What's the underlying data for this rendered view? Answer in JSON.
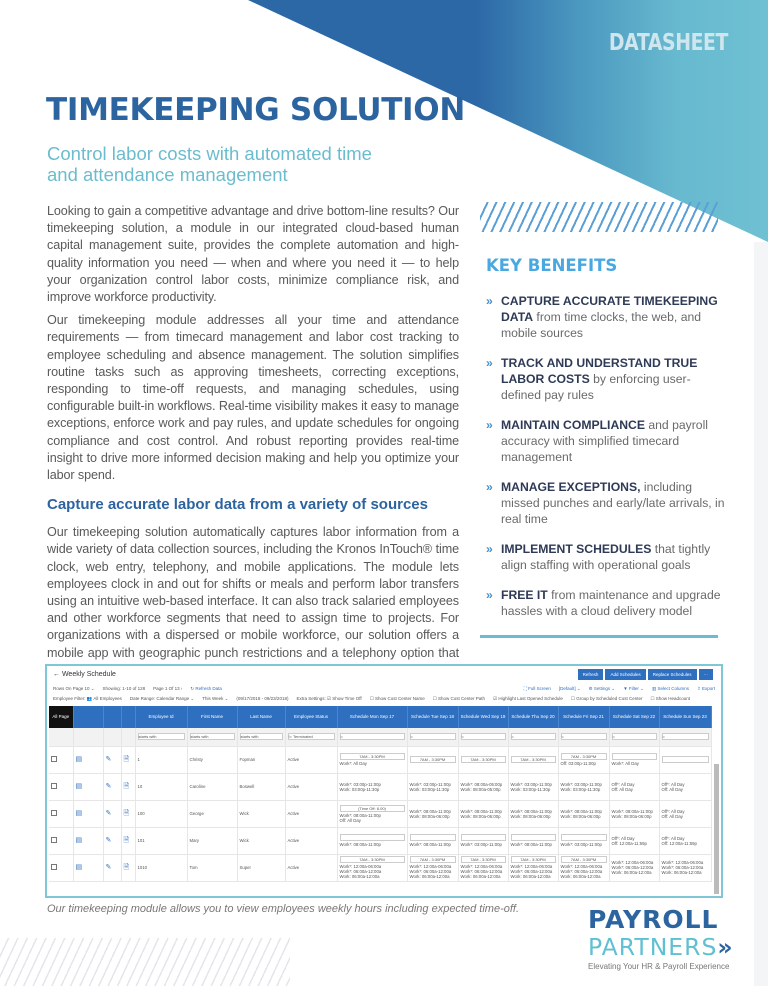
{
  "header": {
    "label": "DATASHEET",
    "title": "TIMEKEEPING SOLUTION",
    "subtitle": "Control labor costs with automated time and attendance  management"
  },
  "colors": {
    "primary": "#2c64a0",
    "accent": "#6bbccf",
    "benefits_heading": "#4aa8e0"
  },
  "intro": [
    "Looking to gain a competitive advantage and drive bottom-line results? Our timekeeping solution, a module in our integrated cloud-based human capital management suite, provides the complete automation and high-quality information you need — when and where you need it — to help your organization control labor costs, minimize compliance risk, and improve workforce productivity.",
    "Our timekeeping module addresses all your time and attendance requirements — from timecard management and labor cost tracking to employee scheduling and absence management. The solution simplifies routine tasks such as approving timesheets, correcting exceptions, responding to time-off requests, and managing schedules, using configurable built-in workflows. Real-time visibility makes it easy to manage exceptions, enforce work and pay rules, and update schedules for ongoing compliance and cost control. And robust reporting provides real-time insight to drive more informed decision making and help you optimize your labor spend."
  ],
  "section": {
    "heading": "Capture accurate labor data from a variety of sources",
    "body": "Our timekeeping solution automatically captures labor information from a wide variety of data collection sources, including the Kronos InTouch® time clock, web entry, telephony, and mobile applications. The module lets employees clock in and out for shifts or meals and perform labor transfers using an intuitive web-based interface. It can also track salaried employees and other workforce segments that need to assign time to projects. For organizations with a dispersed or mobile workforce, our solution offers a mobile app with geographic punch restrictions and a telephony option that captures employee time data via a landline or mobile phone."
  },
  "benefits": {
    "heading": "KEY BENEFITS",
    "bullet": "»",
    "items": [
      {
        "bold": "CAPTURE ACCURATE TIMEKEEPING DATA",
        "text": " from time clocks, the web, and mobile sources"
      },
      {
        "bold": "TRACK AND UNDERSTAND TRUE LABOR COSTS",
        "text": " by enforcing user-defined pay rules"
      },
      {
        "bold": "MAINTAIN COMPLIANCE",
        "text": " and payroll accuracy with simplified timecard management"
      },
      {
        "bold": "MANAGE EXCEPTIONS,",
        "text": " including missed punches and early/late arrivals, in real time"
      },
      {
        "bold": "IMPLEMENT SCHEDULES",
        "text": " that tightly align staffing with operational goals"
      },
      {
        "bold": "FREE IT",
        "text": " from maintenance and upgrade hassles with a cloud delivery model"
      }
    ]
  },
  "screenshot": {
    "title": "← Weekly Schedule",
    "buttons": [
      "Refresh",
      "Add Schedules",
      "Replace Schedules",
      "···"
    ],
    "toolbar1": [
      "Rows On Page  10 ⌄",
      "Showing: 1-10 of 128",
      "Page  1  Of 13  ›",
      "↻ Refresh Data",
      "⛶ Full Screen",
      "[Default] ⌄",
      "⚙ Settings ⌄",
      "▼ Filter ⌄",
      "▥ Select Columns",
      "⇪ Export"
    ],
    "toolbar2": [
      "Employee Filter: 👥 All Employees",
      "Date Range: Calendar Range ⌄",
      "This Week ⌄",
      "(09/17/2018 - 09/23/2018)",
      "Extra Settings: ☑ Show Time Off",
      "☐ Show Cost Center Name",
      "☐ Show Cost Center Path",
      "☑ Highlight Last Opened Schedule",
      "☐ Group by Scheduled Cost Center",
      "☐ Show Headcount"
    ],
    "select_all": "All Page",
    "columns": [
      "Employee Id",
      "First Name",
      "Last Name",
      "Employee Status",
      "Schedule Mon Sep 17",
      "Schedule Tue Sep 18",
      "Schedule Wed Sep 19",
      "Schedule Thu Sep 20",
      "Schedule Fri Sep 21",
      "Schedule Sat Sep 22",
      "Schedule Sun Sep 23"
    ],
    "filters": [
      "starts with",
      "starts with",
      "starts with",
      "!= Terminated",
      "=",
      "=",
      "=",
      "=",
      "=",
      "=",
      "="
    ],
    "rows": [
      {
        "id": "1",
        "first": "Christy",
        "last": "Fopman",
        "status": "Active",
        "days": [
          {
            "box": "7AM - 3:30PM",
            "lines": [
              "Work*: All Day"
            ]
          },
          {
            "box": "7AM - 3:30PM",
            "lines": []
          },
          {
            "box": "7AM - 3:30PM",
            "lines": []
          },
          {
            "box": "7AM - 3:30PM",
            "lines": []
          },
          {
            "box": "7AM - 3:30PM",
            "lines": [
              "Off: 03:00p-11:00p"
            ]
          },
          {
            "box": "",
            "lines": [
              "Work*: All Day"
            ]
          },
          {
            "box": "",
            "lines": []
          }
        ]
      },
      {
        "id": "10",
        "first": "Caroline",
        "last": "Boswell",
        "status": "Active",
        "days": [
          {
            "box": "",
            "lines": [
              "Work*: 03:00p-11:00p",
              "Work: 03:00p-11:30p"
            ]
          },
          {
            "box": "",
            "lines": [
              "Work*: 03:00p-11:00p",
              "Work: 03:00p-11:30p"
            ]
          },
          {
            "box": "",
            "lines": [
              "Work*: 08:00a-05:00p",
              "Work: 08:00a-05:00p"
            ]
          },
          {
            "box": "",
            "lines": [
              "Work*: 03:00p-11:00p",
              "Work: 03:00p-11:30p"
            ]
          },
          {
            "box": "",
            "lines": [
              "Work*: 03:00p-11:00p",
              "Work: 03:00p-11:30p"
            ]
          },
          {
            "box": "",
            "lines": [
              "Off*: All Day",
              "Off: All Day"
            ]
          },
          {
            "box": "",
            "lines": [
              "Off*: All Day",
              "Off: All Day"
            ]
          }
        ]
      },
      {
        "id": "100",
        "first": "George",
        "last": "Wick",
        "status": "Active",
        "days": [
          {
            "box": "(Time Off: 8.00)",
            "lines": [
              "Work*: 08:00a-11:00p",
              "Off: All Day"
            ]
          },
          {
            "box": "",
            "lines": [
              "Work*: 08:00a-11:00p",
              "Work: 08:00a-06:00p"
            ]
          },
          {
            "box": "",
            "lines": [
              "Work*: 08:00a-11:00p",
              "Work: 08:00a-06:00p"
            ]
          },
          {
            "box": "",
            "lines": [
              "Work*: 08:00a-11:00p",
              "Work: 08:00a-06:00p"
            ]
          },
          {
            "box": "",
            "lines": [
              "Work*: 08:00a-11:00p",
              "Work: 08:00a-06:00p"
            ]
          },
          {
            "box": "",
            "lines": [
              "Work*: 08:00a-11:00p",
              "Work: 08:00a-06:00p"
            ]
          },
          {
            "box": "",
            "lines": [
              "Off*: All Day",
              "Off: All Day"
            ]
          }
        ]
      },
      {
        "id": "101",
        "first": "Mary",
        "last": "Wick",
        "status": "Active",
        "days": [
          {
            "box": "",
            "lines": [
              "Work*: 08:00a-11:00p"
            ]
          },
          {
            "box": "",
            "lines": [
              "Work*: 08:00a-11:00p"
            ]
          },
          {
            "box": "",
            "lines": [
              "Work*: 03:00p-11:00p"
            ]
          },
          {
            "box": "",
            "lines": [
              "Work*: 08:00a-11:00p"
            ]
          },
          {
            "box": "",
            "lines": [
              "Work*: 03:00p-11:00p"
            ]
          },
          {
            "box": "",
            "lines": [
              "Off*: All Day",
              "Off: 12:00a-11:59p"
            ]
          },
          {
            "box": "",
            "lines": [
              "Off*: All Day",
              "Off: 12:00a-11:59p"
            ]
          }
        ]
      },
      {
        "id": "1010",
        "first": "Tom",
        "last": "Super",
        "status": "Active",
        "days": [
          {
            "box": "7AM - 3:30PM",
            "lines": [
              "Work*: 12:00a-06:00a",
              "Work*: 06:00a-12:00a",
              "Work: 06:00a-12:00a"
            ]
          },
          {
            "box": "7AM - 3:30PM",
            "lines": [
              "Work*: 12:00a-06:00a",
              "Work*: 06:00a-12:00a",
              "Work: 06:00a-12:00a"
            ]
          },
          {
            "box": "7AM - 3:30PM",
            "lines": [
              "Work*: 12:00a-06:00a",
              "Work*: 06:00a-12:00a",
              "Work: 06:00a-12:00a"
            ]
          },
          {
            "box": "7AM - 3:30PM",
            "lines": [
              "Work*: 12:00a-06:00a",
              "Work*: 06:00a-12:00a",
              "Work: 06:00a-12:00a"
            ]
          },
          {
            "box": "7AM - 3:30PM",
            "lines": [
              "Work*: 12:00a-06:00a",
              "Work*: 06:00a-12:00a",
              "Work: 06:00a-12:00a"
            ]
          },
          {
            "box": "",
            "lines": [
              "Work*: 12:00a-06:00a",
              "Work*: 06:00a-12:00a",
              "Work: 06:00a-12:00a"
            ]
          },
          {
            "box": "",
            "lines": [
              "Work*: 12:00a-06:00a",
              "Work*: 06:00a-12:00a",
              "Work: 06:00a-12:00a"
            ]
          }
        ]
      }
    ],
    "caption": "Our timekeeping module allows you to view employees weekly hours including expected time-off."
  },
  "logo": {
    "line1": "PAYROLL",
    "line2": "PARTNERS",
    "chevron": "»",
    "tagline": "Elevating Your HR & Payroll Experience"
  }
}
